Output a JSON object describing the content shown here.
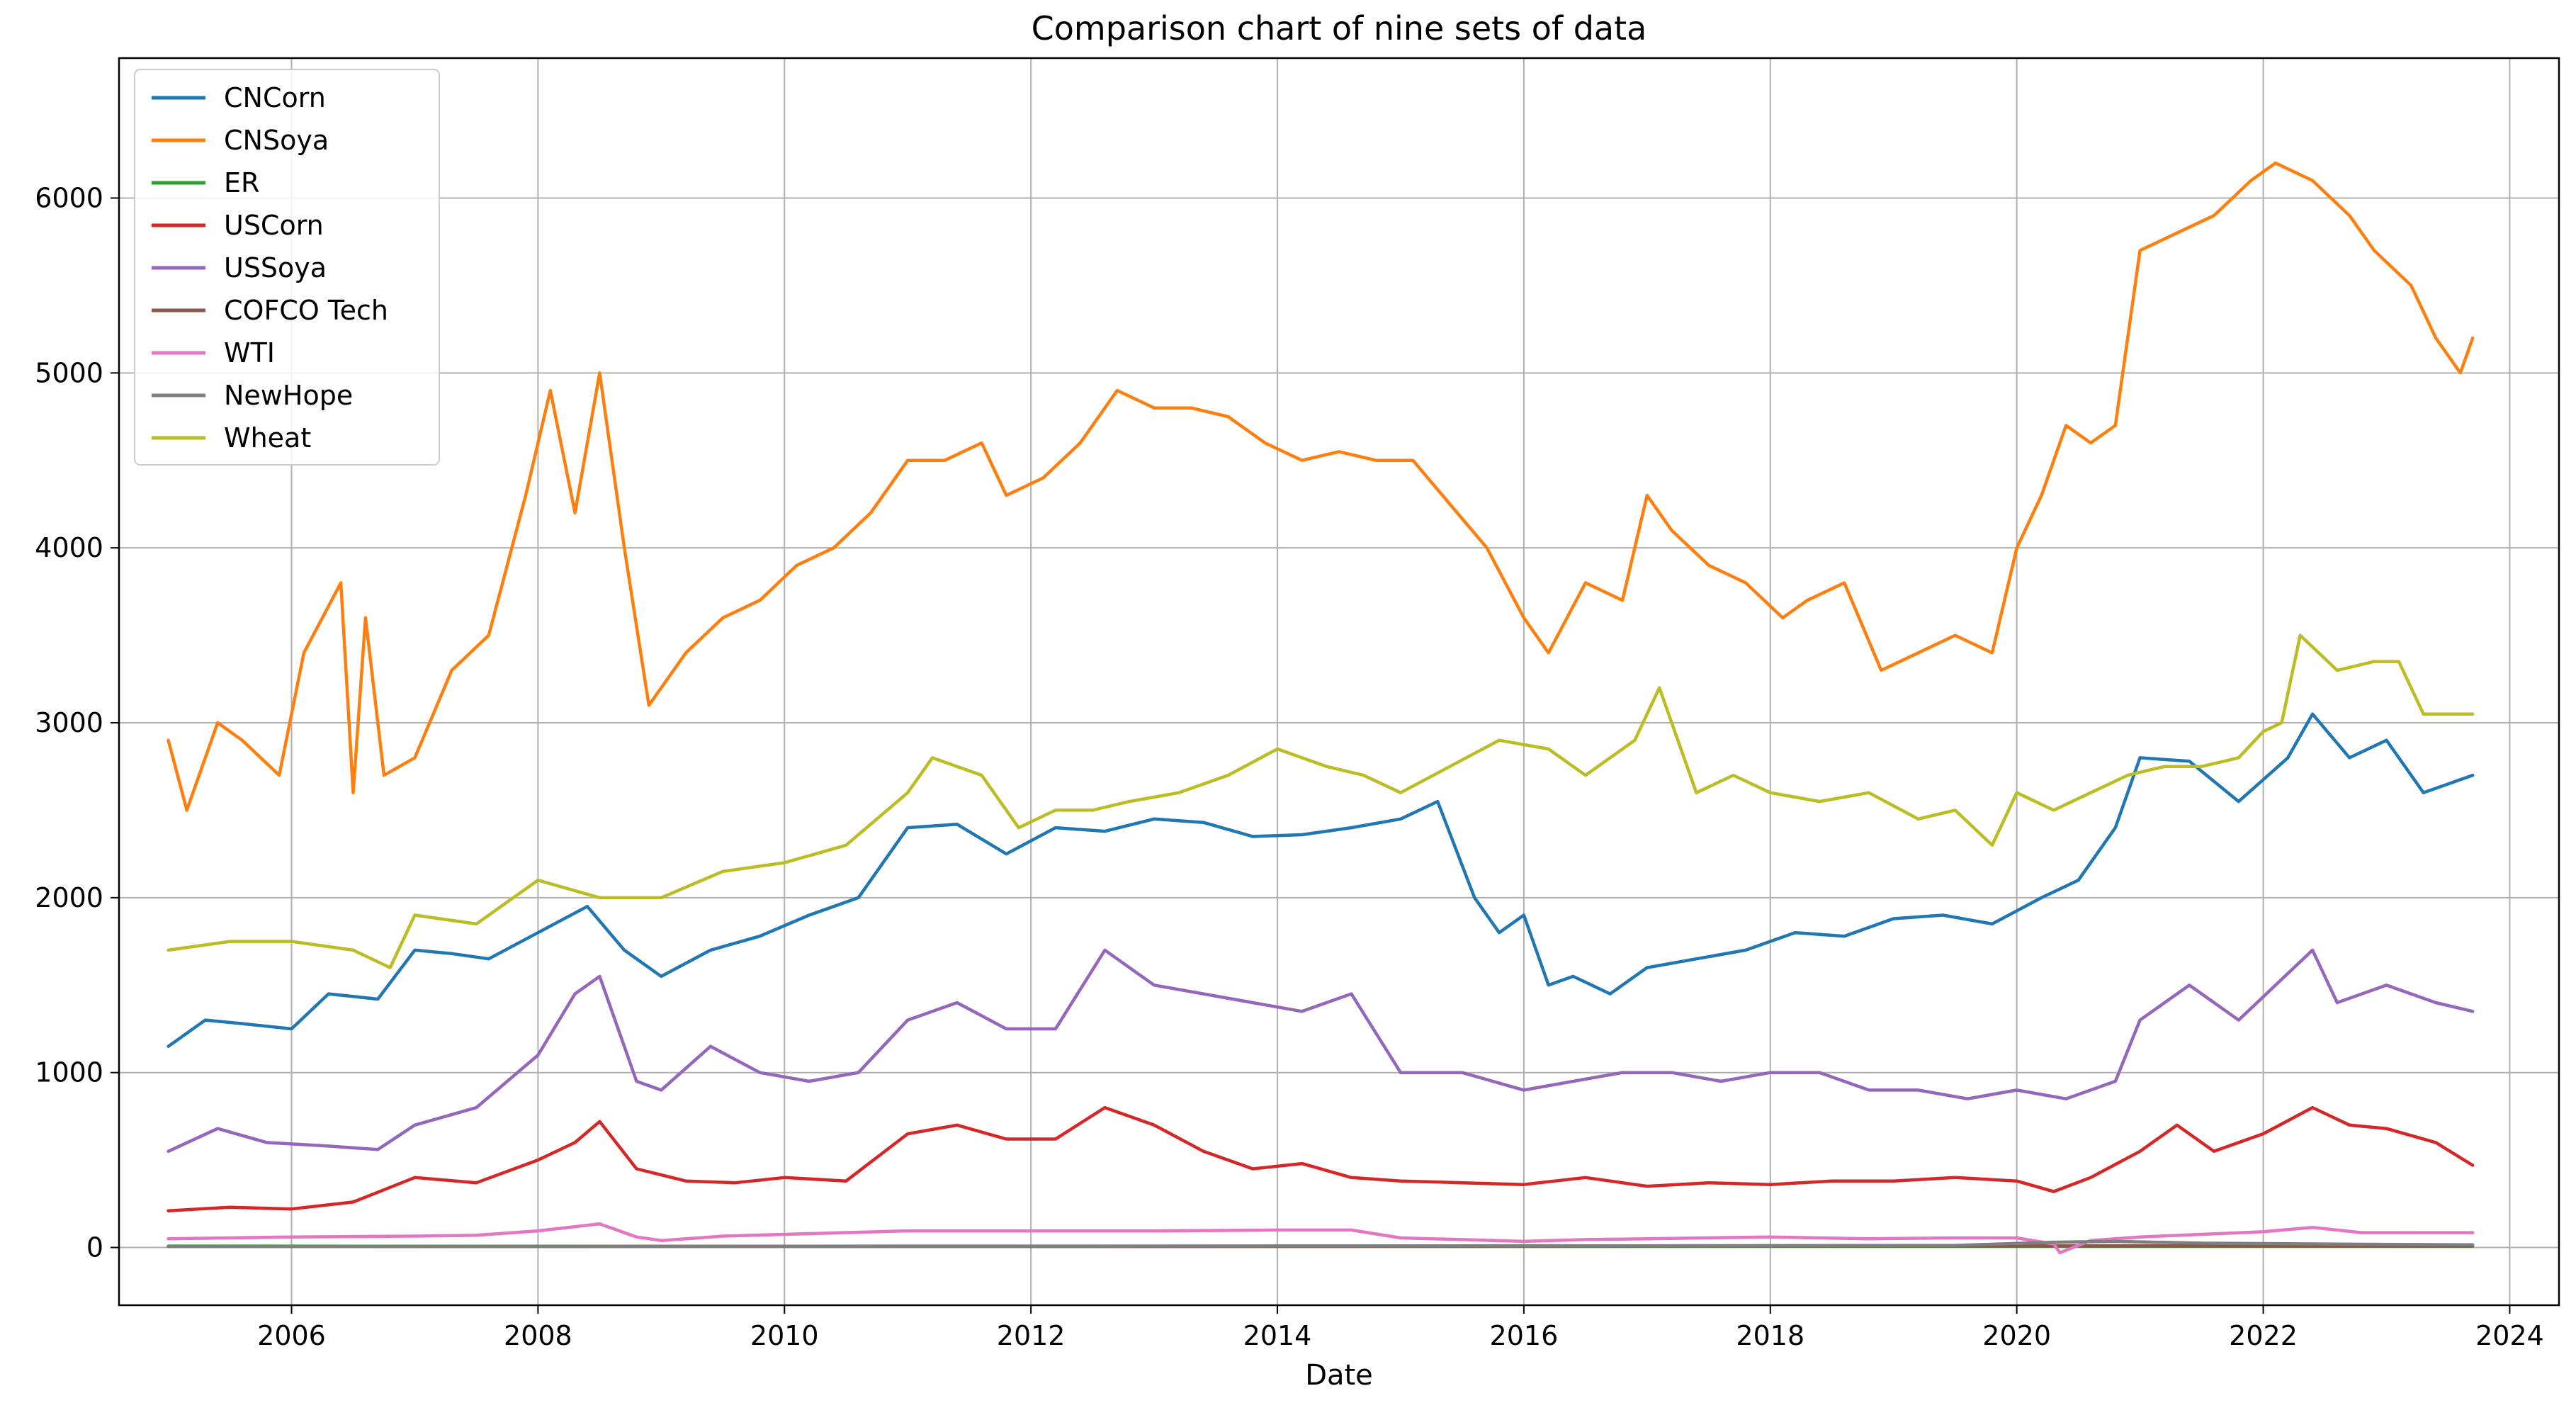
{
  "chart_data": {
    "type": "line",
    "title": "Comparison chart of nine sets of data",
    "xlabel": "Date",
    "ylabel": "",
    "xlim": [
      2004.6,
      2024.4
    ],
    "ylim": [
      -330,
      6800
    ],
    "grid": true,
    "legend_position": "top-left",
    "x_ticks": [
      2006,
      2008,
      2010,
      2012,
      2014,
      2016,
      2018,
      2020,
      2022,
      2024
    ],
    "x_tick_labels": [
      "2006",
      "2008",
      "2010",
      "2012",
      "2014",
      "2016",
      "2018",
      "2020",
      "2022",
      "2024"
    ],
    "y_ticks": [
      0,
      1000,
      2000,
      3000,
      4000,
      5000,
      6000
    ],
    "y_tick_labels": [
      "0",
      "1000",
      "2000",
      "3000",
      "4000",
      "5000",
      "6000"
    ],
    "series": [
      {
        "name": "CNCorn",
        "color": "#1f77b4",
        "x": [
          2005.0,
          2005.3,
          2005.6,
          2006.0,
          2006.3,
          2006.7,
          2007.0,
          2007.3,
          2007.6,
          2008.0,
          2008.4,
          2008.7,
          2009.0,
          2009.4,
          2009.8,
          2010.2,
          2010.6,
          2011.0,
          2011.4,
          2011.8,
          2012.2,
          2012.6,
          2013.0,
          2013.4,
          2013.8,
          2014.2,
          2014.6,
          2015.0,
          2015.3,
          2015.6,
          2015.8,
          2016.0,
          2016.2,
          2016.4,
          2016.7,
          2017.0,
          2017.4,
          2017.8,
          2018.2,
          2018.6,
          2019.0,
          2019.4,
          2019.8,
          2020.2,
          2020.5,
          2020.8,
          2021.0,
          2021.4,
          2021.8,
          2022.2,
          2022.4,
          2022.7,
          2023.0,
          2023.3,
          2023.7
        ],
        "y": [
          1150,
          1300,
          1280,
          1250,
          1450,
          1420,
          1700,
          1680,
          1650,
          1800,
          1950,
          1700,
          1550,
          1700,
          1780,
          1900,
          2000,
          2400,
          2420,
          2250,
          2400,
          2380,
          2450,
          2430,
          2350,
          2360,
          2400,
          2450,
          2550,
          2000,
          1800,
          1900,
          1500,
          1550,
          1450,
          1600,
          1650,
          1700,
          1800,
          1780,
          1880,
          1900,
          1850,
          2000,
          2100,
          2400,
          2800,
          2780,
          2550,
          2800,
          3050,
          2800,
          2900,
          2600,
          2700
        ]
      },
      {
        "name": "CNSoya",
        "color": "#ff7f0e",
        "x": [
          2005.0,
          2005.15,
          2005.4,
          2005.6,
          2005.9,
          2006.1,
          2006.4,
          2006.5,
          2006.6,
          2006.75,
          2007.0,
          2007.3,
          2007.6,
          2007.9,
          2008.1,
          2008.3,
          2008.5,
          2008.7,
          2008.9,
          2009.2,
          2009.5,
          2009.8,
          2010.1,
          2010.4,
          2010.7,
          2011.0,
          2011.3,
          2011.6,
          2011.8,
          2012.1,
          2012.4,
          2012.7,
          2013.0,
          2013.3,
          2013.6,
          2013.9,
          2014.2,
          2014.5,
          2014.8,
          2015.1,
          2015.4,
          2015.7,
          2016.0,
          2016.2,
          2016.5,
          2016.8,
          2017.0,
          2017.2,
          2017.5,
          2017.8,
          2018.1,
          2018.3,
          2018.6,
          2018.9,
          2019.2,
          2019.5,
          2019.8,
          2020.0,
          2020.2,
          2020.4,
          2020.6,
          2020.8,
          2021.0,
          2021.3,
          2021.6,
          2021.9,
          2022.1,
          2022.4,
          2022.7,
          2022.9,
          2023.2,
          2023.4,
          2023.6,
          2023.7
        ],
        "y": [
          2900,
          2500,
          3000,
          2900,
          2700,
          3400,
          3800,
          2600,
          3600,
          2700,
          2800,
          3300,
          3500,
          4300,
          4900,
          4200,
          5000,
          4000,
          3100,
          3400,
          3600,
          3700,
          3900,
          4000,
          4200,
          4500,
          4500,
          4600,
          4300,
          4400,
          4600,
          4900,
          4800,
          4800,
          4750,
          4600,
          4500,
          4550,
          4500,
          4500,
          4250,
          4000,
          3600,
          3400,
          3800,
          3700,
          4300,
          4100,
          3900,
          3800,
          3600,
          3700,
          3800,
          3300,
          3400,
          3500,
          3400,
          4000,
          4300,
          4700,
          4600,
          4700,
          5700,
          5800,
          5900,
          6100,
          6200,
          6100,
          5900,
          5700,
          5500,
          5200,
          5000,
          5200
        ]
      },
      {
        "name": "ER",
        "color": "#2ca02c",
        "x": [
          2005.0,
          2008.0,
          2011.0,
          2014.0,
          2017.0,
          2020.0,
          2023.7
        ],
        "y": [
          8,
          7,
          6,
          6,
          7,
          7,
          7
        ]
      },
      {
        "name": "USCorn",
        "color": "#d62728",
        "x": [
          2005.0,
          2005.5,
          2006.0,
          2006.5,
          2007.0,
          2007.5,
          2008.0,
          2008.3,
          2008.5,
          2008.8,
          2009.2,
          2009.6,
          2010.0,
          2010.5,
          2011.0,
          2011.4,
          2011.8,
          2012.2,
          2012.6,
          2013.0,
          2013.4,
          2013.8,
          2014.2,
          2014.6,
          2015.0,
          2015.5,
          2016.0,
          2016.5,
          2017.0,
          2017.5,
          2018.0,
          2018.5,
          2019.0,
          2019.5,
          2020.0,
          2020.3,
          2020.6,
          2021.0,
          2021.3,
          2021.6,
          2022.0,
          2022.4,
          2022.7,
          2023.0,
          2023.4,
          2023.7
        ],
        "y": [
          210,
          230,
          220,
          260,
          400,
          370,
          500,
          600,
          720,
          450,
          380,
          370,
          400,
          380,
          650,
          700,
          620,
          620,
          800,
          700,
          550,
          450,
          480,
          400,
          380,
          370,
          360,
          400,
          350,
          370,
          360,
          380,
          380,
          400,
          380,
          320,
          400,
          550,
          700,
          550,
          650,
          800,
          700,
          680,
          600,
          470
        ]
      },
      {
        "name": "USSoya",
        "color": "#9467bd",
        "x": [
          2005.0,
          2005.4,
          2005.8,
          2006.3,
          2006.7,
          2007.0,
          2007.5,
          2008.0,
          2008.3,
          2008.5,
          2008.8,
          2009.0,
          2009.4,
          2009.8,
          2010.2,
          2010.6,
          2011.0,
          2011.4,
          2011.8,
          2012.2,
          2012.6,
          2013.0,
          2013.4,
          2013.8,
          2014.2,
          2014.6,
          2015.0,
          2015.5,
          2016.0,
          2016.4,
          2016.8,
          2017.2,
          2017.6,
          2018.0,
          2018.4,
          2018.8,
          2019.2,
          2019.6,
          2020.0,
          2020.4,
          2020.8,
          2021.0,
          2021.4,
          2021.8,
          2022.1,
          2022.4,
          2022.6,
          2023.0,
          2023.4,
          2023.7
        ],
        "y": [
          550,
          680,
          600,
          580,
          560,
          700,
          800,
          1100,
          1450,
          1550,
          950,
          900,
          1150,
          1000,
          950,
          1000,
          1300,
          1400,
          1250,
          1250,
          1700,
          1500,
          1450,
          1400,
          1350,
          1450,
          1000,
          1000,
          900,
          950,
          1000,
          1000,
          950,
          1000,
          1000,
          900,
          900,
          850,
          900,
          850,
          950,
          1300,
          1500,
          1300,
          1500,
          1700,
          1400,
          1500,
          1400,
          1350
        ]
      },
      {
        "name": "COFCO Tech",
        "color": "#8c564b",
        "x": [
          2005.0,
          2008.0,
          2011.0,
          2014.0,
          2017.0,
          2020.0,
          2023.7
        ],
        "y": [
          5,
          6,
          8,
          7,
          9,
          10,
          9
        ]
      },
      {
        "name": "WTI",
        "color": "#e377c2",
        "x": [
          2005.0,
          2006.0,
          2007.0,
          2007.5,
          2008.0,
          2008.5,
          2008.8,
          2009.0,
          2009.5,
          2010.0,
          2011.0,
          2012.0,
          2013.0,
          2014.0,
          2014.6,
          2015.0,
          2016.0,
          2016.5,
          2017.0,
          2018.0,
          2018.8,
          2019.5,
          2020.0,
          2020.3,
          2020.35,
          2020.6,
          2021.0,
          2022.0,
          2022.4,
          2022.8,
          2023.7
        ],
        "y": [
          50,
          60,
          65,
          70,
          95,
          135,
          60,
          40,
          65,
          75,
          95,
          95,
          95,
          100,
          100,
          55,
          35,
          45,
          50,
          60,
          50,
          55,
          55,
          20,
          -30,
          40,
          60,
          90,
          115,
          85,
          85
        ]
      },
      {
        "name": "NewHope",
        "color": "#7f7f7f",
        "x": [
          2005.0,
          2008.0,
          2011.0,
          2014.0,
          2017.0,
          2019.5,
          2020.3,
          2020.8,
          2021.5,
          2022.5,
          2023.7
        ],
        "y": [
          5,
          6,
          7,
          9,
          10,
          12,
          30,
          35,
          25,
          20,
          15
        ]
      },
      {
        "name": "Wheat",
        "color": "#bcbd22",
        "x": [
          2005.0,
          2005.5,
          2006.0,
          2006.5,
          2006.8,
          2007.0,
          2007.5,
          2008.0,
          2008.5,
          2009.0,
          2009.5,
          2010.0,
          2010.5,
          2011.0,
          2011.2,
          2011.6,
          2011.9,
          2012.2,
          2012.5,
          2012.8,
          2013.2,
          2013.6,
          2014.0,
          2014.4,
          2014.7,
          2015.0,
          2015.4,
          2015.8,
          2016.2,
          2016.5,
          2016.9,
          2017.1,
          2017.4,
          2017.7,
          2018.0,
          2018.4,
          2018.8,
          2019.2,
          2019.5,
          2019.8,
          2020.0,
          2020.3,
          2020.6,
          2020.9,
          2021.2,
          2021.5,
          2021.8,
          2022.0,
          2022.15,
          2022.3,
          2022.6,
          2022.9,
          2023.1,
          2023.3,
          2023.7
        ],
        "y": [
          1700,
          1750,
          1750,
          1700,
          1600,
          1900,
          1850,
          2100,
          2000,
          2000,
          2150,
          2200,
          2300,
          2600,
          2800,
          2700,
          2400,
          2500,
          2500,
          2550,
          2600,
          2700,
          2850,
          2750,
          2700,
          2600,
          2750,
          2900,
          2850,
          2700,
          2900,
          3200,
          2600,
          2700,
          2600,
          2550,
          2600,
          2450,
          2500,
          2300,
          2600,
          2500,
          2600,
          2700,
          2750,
          2750,
          2800,
          2950,
          3000,
          3500,
          3300,
          3350,
          3350,
          3050,
          3050
        ]
      }
    ]
  }
}
